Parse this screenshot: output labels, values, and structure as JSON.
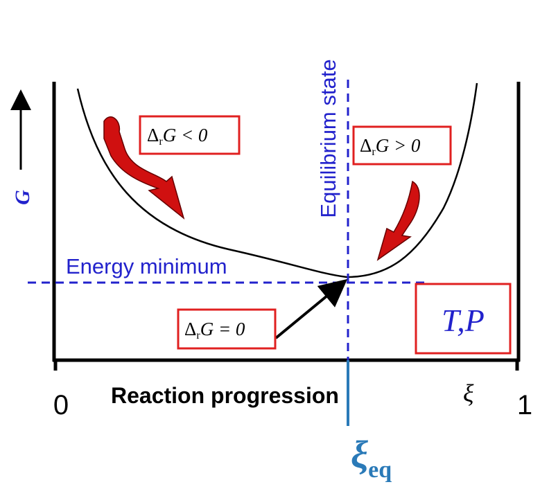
{
  "axis": {
    "y_label": "G",
    "x_label": "Reaction progression",
    "x_symbol": "ξ",
    "x_start": "0",
    "x_end": "1"
  },
  "equilibrium_label": "Equilibrium state",
  "minimum_label": "Energy minimum",
  "boxes": [
    {
      "delta": "Δ",
      "sub": "r",
      "rest": "G < 0"
    },
    {
      "delta": "Δ",
      "sub": "r",
      "rest": "G > 0"
    },
    {
      "delta": "Δ",
      "sub": "r",
      "rest": "G = 0"
    }
  ],
  "conditions": "T,P",
  "xi_eq": {
    "symbol": "ξ",
    "sub": "eq"
  }
}
